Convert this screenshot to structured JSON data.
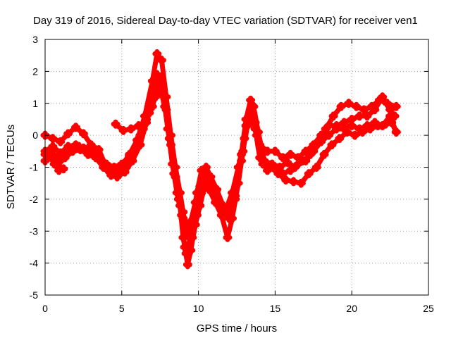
{
  "chart_data": {
    "type": "scatter",
    "title": "Day 319 of 2016, Sidereal Day-to-day VTEC variation (SDTVAR) for receiver ven1",
    "xlabel": "GPS time / hours",
    "ylabel": "SDTVAR / TECUs",
    "xlim": [
      0,
      25
    ],
    "ylim": [
      -5,
      3
    ],
    "xticks": [
      0,
      5,
      10,
      15,
      20,
      25
    ],
    "yticks": [
      3,
      2,
      1,
      0,
      -1,
      -2,
      -3,
      -4,
      -5
    ],
    "grid": true,
    "marker": "+",
    "color": "#ff0000",
    "series": [
      {
        "points": [
          [
            0.0,
            0.0
          ],
          [
            0.5,
            -0.1
          ],
          [
            1.0,
            -0.2
          ],
          [
            1.5,
            0.05
          ],
          [
            2.0,
            0.25
          ],
          [
            2.5,
            0.05
          ],
          [
            3.0,
            -0.3
          ],
          [
            3.5,
            -0.45
          ],
          [
            4.0,
            -1.0
          ],
          [
            4.5,
            -1.2
          ],
          [
            5.0,
            -0.95
          ],
          [
            5.5,
            -0.6
          ],
          [
            6.0,
            -0.15
          ],
          [
            6.5,
            0.6
          ],
          [
            7.0,
            1.7
          ],
          [
            7.3,
            2.55
          ],
          [
            7.6,
            2.35
          ],
          [
            7.9,
            1.2
          ],
          [
            8.2,
            0.0
          ],
          [
            8.5,
            -1.0
          ],
          [
            8.8,
            -1.8
          ],
          [
            9.0,
            -2.4
          ],
          [
            9.2,
            -2.9
          ],
          [
            9.4,
            -3.2
          ],
          [
            9.6,
            -2.8
          ],
          [
            9.9,
            -1.8
          ],
          [
            10.2,
            -1.1
          ],
          [
            10.5,
            -1.0
          ],
          [
            10.8,
            -1.3
          ],
          [
            11.2,
            -1.7
          ],
          [
            11.6,
            -2.2
          ],
          [
            12.0,
            -2.4
          ],
          [
            12.4,
            -1.9
          ],
          [
            12.8,
            -0.6
          ],
          [
            13.1,
            0.5
          ],
          [
            13.4,
            1.1
          ],
          [
            13.7,
            0.4
          ],
          [
            14.0,
            -0.3
          ],
          [
            14.5,
            -0.5
          ],
          [
            15.0,
            -0.5
          ],
          [
            15.5,
            -0.7
          ],
          [
            16.0,
            -0.6
          ],
          [
            16.5,
            -0.7
          ],
          [
            17.0,
            -0.5
          ],
          [
            17.5,
            -0.3
          ],
          [
            18.0,
            0.0
          ],
          [
            18.5,
            0.3
          ],
          [
            19.0,
            0.3
          ],
          [
            19.5,
            0.4
          ],
          [
            20.0,
            0.5
          ],
          [
            20.5,
            0.6
          ],
          [
            21.0,
            0.6
          ],
          [
            21.5,
            0.8
          ],
          [
            22.0,
            1.2
          ],
          [
            22.5,
            0.8
          ],
          [
            22.8,
            0.6
          ]
        ]
      },
      {
        "points": [
          [
            0.0,
            -0.6
          ],
          [
            0.4,
            -0.55
          ],
          [
            0.8,
            -0.7
          ],
          [
            1.2,
            -0.65
          ],
          [
            1.7,
            -0.45
          ],
          [
            2.2,
            -0.35
          ],
          [
            2.7,
            -0.45
          ],
          [
            3.2,
            -0.5
          ],
          [
            3.7,
            -0.8
          ],
          [
            4.2,
            -1.15
          ],
          [
            4.7,
            -1.3
          ],
          [
            5.2,
            -1.15
          ],
          [
            5.7,
            -0.8
          ],
          [
            6.2,
            -0.3
          ],
          [
            6.6,
            0.4
          ],
          [
            7.0,
            1.2
          ],
          [
            7.3,
            1.9
          ],
          [
            7.6,
            1.7
          ],
          [
            7.9,
            0.8
          ],
          [
            8.2,
            -0.3
          ],
          [
            8.5,
            -1.3
          ],
          [
            8.8,
            -2.2
          ],
          [
            9.0,
            -3.2
          ],
          [
            9.2,
            -3.7
          ],
          [
            9.4,
            -3.4
          ],
          [
            9.6,
            -3.2
          ],
          [
            9.9,
            -2.5
          ],
          [
            10.2,
            -1.8
          ],
          [
            10.5,
            -1.5
          ],
          [
            10.8,
            -1.6
          ],
          [
            11.2,
            -2.0
          ],
          [
            11.6,
            -2.4
          ],
          [
            12.0,
            -2.6
          ],
          [
            12.4,
            -2.0
          ],
          [
            12.8,
            -0.8
          ],
          [
            13.1,
            0.3
          ],
          [
            13.4,
            0.8
          ],
          [
            13.7,
            0.2
          ],
          [
            14.0,
            -0.7
          ],
          [
            14.5,
            -1.1
          ],
          [
            15.0,
            -1.0
          ],
          [
            15.5,
            -1.2
          ],
          [
            16.0,
            -1.1
          ],
          [
            16.5,
            -0.9
          ],
          [
            17.0,
            -0.8
          ],
          [
            17.5,
            -0.5
          ],
          [
            18.0,
            -0.2
          ],
          [
            18.5,
            0.0
          ],
          [
            19.0,
            0.2
          ],
          [
            19.5,
            0.2
          ],
          [
            20.0,
            0.3
          ],
          [
            20.5,
            0.2
          ],
          [
            21.0,
            0.3
          ],
          [
            21.5,
            0.4
          ],
          [
            22.0,
            0.3
          ],
          [
            22.5,
            0.6
          ],
          [
            22.9,
            0.1
          ]
        ]
      },
      {
        "points": [
          [
            0.0,
            -0.8
          ],
          [
            0.4,
            -0.7
          ],
          [
            0.8,
            -0.95
          ],
          [
            1.3,
            -0.7
          ],
          [
            1.8,
            -0.5
          ],
          [
            2.3,
            -0.45
          ],
          [
            2.8,
            -0.6
          ],
          [
            3.3,
            -0.7
          ],
          [
            3.8,
            -1.0
          ],
          [
            4.3,
            -1.25
          ],
          [
            4.8,
            -1.2
          ],
          [
            5.3,
            -1.0
          ],
          [
            5.8,
            -0.55
          ],
          [
            6.2,
            0.0
          ],
          [
            6.6,
            0.5
          ],
          [
            7.0,
            0.9
          ],
          [
            7.4,
            1.7
          ],
          [
            7.7,
            1.3
          ],
          [
            8.0,
            0.2
          ],
          [
            8.3,
            -0.9
          ],
          [
            8.6,
            -1.8
          ],
          [
            8.9,
            -2.5
          ],
          [
            9.1,
            -3.5
          ],
          [
            9.3,
            -4.05
          ],
          [
            9.5,
            -3.6
          ],
          [
            9.8,
            -2.8
          ],
          [
            10.1,
            -2.2
          ],
          [
            10.4,
            -1.6
          ],
          [
            10.7,
            -1.7
          ],
          [
            11.1,
            -2.1
          ],
          [
            11.5,
            -2.5
          ],
          [
            11.9,
            -3.2
          ],
          [
            12.2,
            -2.6
          ],
          [
            12.6,
            -1.5
          ],
          [
            12.9,
            -0.5
          ],
          [
            13.2,
            0.3
          ],
          [
            13.5,
            0.7
          ],
          [
            13.8,
            0.0
          ],
          [
            14.2,
            -0.9
          ],
          [
            14.7,
            -1.0
          ],
          [
            15.2,
            -1.2
          ],
          [
            15.7,
            -1.4
          ],
          [
            16.2,
            -1.45
          ],
          [
            16.7,
            -1.5
          ],
          [
            17.2,
            -1.2
          ],
          [
            17.7,
            -1.0
          ],
          [
            18.2,
            -0.6
          ],
          [
            18.7,
            -0.3
          ],
          [
            19.2,
            -0.1
          ],
          [
            19.7,
            0.1
          ],
          [
            20.2,
            0.0
          ],
          [
            20.7,
            0.1
          ],
          [
            21.2,
            0.2
          ],
          [
            21.7,
            0.3
          ],
          [
            22.2,
            0.35
          ],
          [
            22.6,
            0.4
          ],
          [
            22.9,
            0.1
          ]
        ]
      },
      {
        "points": [
          [
            0.0,
            -0.5
          ],
          [
            0.5,
            -0.35
          ],
          [
            1.0,
            -0.55
          ],
          [
            1.5,
            -0.35
          ],
          [
            2.0,
            -0.3
          ],
          [
            2.5,
            -0.4
          ],
          [
            3.0,
            -0.35
          ],
          [
            3.5,
            -0.6
          ],
          [
            4.0,
            -0.9
          ],
          [
            4.5,
            -1.0
          ],
          [
            5.0,
            -0.9
          ],
          [
            5.5,
            -0.65
          ],
          [
            6.0,
            -0.3
          ],
          [
            6.4,
            0.2
          ],
          [
            6.8,
            0.7
          ],
          [
            7.2,
            1.2
          ],
          [
            7.5,
            1.5
          ],
          [
            7.8,
            0.9
          ],
          [
            8.1,
            -0.1
          ],
          [
            8.4,
            -1.2
          ],
          [
            8.7,
            -2.0
          ],
          [
            9.0,
            -2.6
          ],
          [
            9.3,
            -3.0
          ],
          [
            9.5,
            -2.7
          ],
          [
            9.8,
            -2.1
          ],
          [
            10.1,
            -1.6
          ],
          [
            10.4,
            -1.2
          ],
          [
            10.7,
            -1.4
          ],
          [
            11.0,
            -1.8
          ],
          [
            11.4,
            -2.1
          ],
          [
            11.8,
            -2.3
          ],
          [
            12.2,
            -1.8
          ],
          [
            12.6,
            -1.0
          ],
          [
            13.0,
            -0.1
          ],
          [
            13.3,
            0.6
          ],
          [
            13.6,
            0.9
          ],
          [
            13.9,
            0.1
          ],
          [
            14.3,
            -0.8
          ],
          [
            14.8,
            -0.9
          ],
          [
            15.3,
            -1.0
          ],
          [
            15.8,
            -0.85
          ],
          [
            16.3,
            -1.0
          ],
          [
            16.8,
            -0.8
          ],
          [
            17.3,
            -0.6
          ],
          [
            17.8,
            -0.2
          ],
          [
            18.3,
            0.2
          ],
          [
            18.8,
            0.6
          ],
          [
            19.3,
            0.9
          ],
          [
            19.8,
            1.0
          ],
          [
            20.3,
            0.9
          ],
          [
            20.8,
            0.8
          ],
          [
            21.3,
            0.9
          ],
          [
            21.8,
            1.1
          ],
          [
            22.3,
            1.0
          ],
          [
            22.9,
            0.9
          ]
        ]
      },
      {
        "points": [
          [
            4.6,
            0.35
          ],
          [
            5.1,
            0.15
          ],
          [
            5.6,
            0.2
          ],
          [
            6.1,
            0.3
          ]
        ]
      },
      {
        "points": [
          [
            0.6,
            -0.9
          ],
          [
            0.9,
            -1.1
          ],
          [
            1.2,
            -1.05
          ]
        ]
      }
    ]
  }
}
